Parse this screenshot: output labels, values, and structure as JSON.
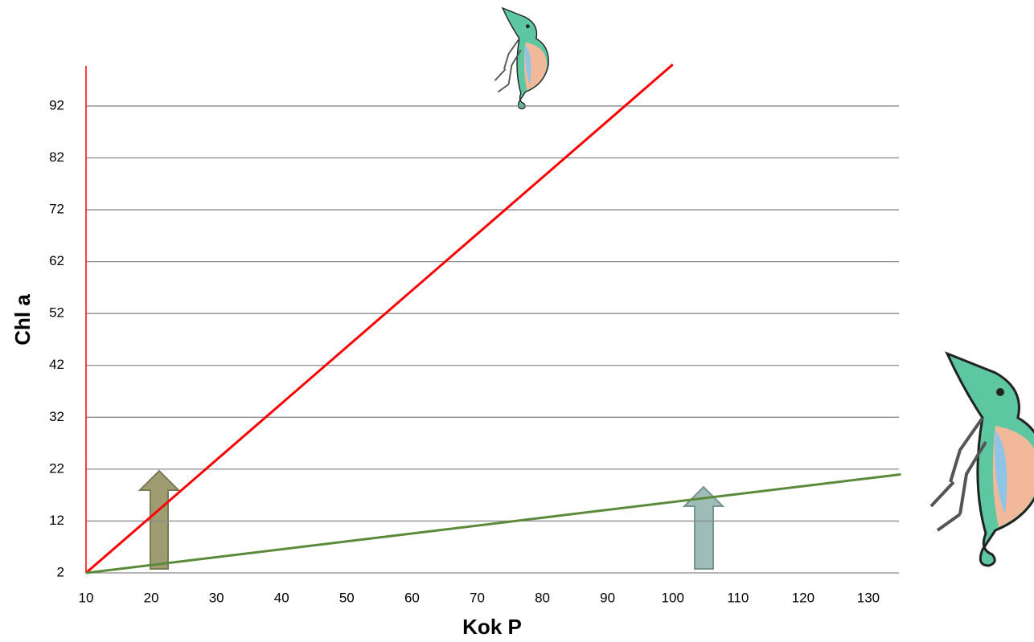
{
  "chart_data": {
    "type": "line",
    "x_label": "Kok P",
    "y_label": "Chl a",
    "xlim": [
      10,
      135
    ],
    "ylim": [
      2,
      100
    ],
    "xticks": [
      10,
      20,
      30,
      40,
      50,
      60,
      70,
      80,
      90,
      100,
      110,
      120,
      130
    ],
    "yticks": [
      2,
      12,
      22,
      32,
      42,
      52,
      62,
      72,
      82,
      92
    ],
    "grid": true,
    "series": [
      {
        "color": "#ff0000",
        "x": [
          10,
          100
        ],
        "values": [
          2,
          100
        ]
      },
      {
        "color": "#5b8a3a",
        "x": [
          10,
          135
        ],
        "values": [
          2,
          21
        ]
      }
    ]
  }
}
